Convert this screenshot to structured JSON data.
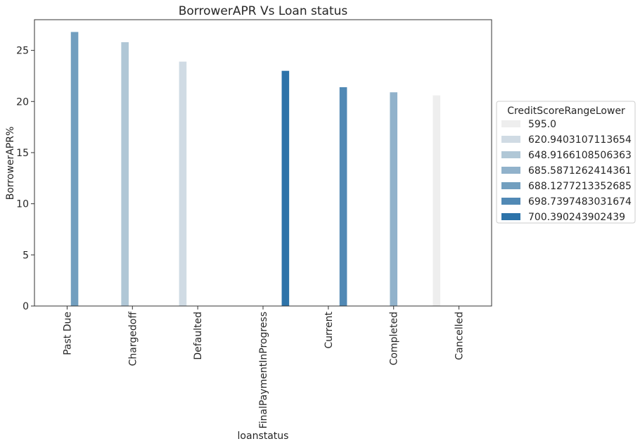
{
  "chart_data": {
    "type": "bar",
    "title": "BorrowerAPR Vs Loan status",
    "xlabel": "loanstatus",
    "ylabel": "BorrowerAPR%",
    "ylim": [
      0,
      28
    ],
    "yticks": [
      "0",
      "5",
      "10",
      "15",
      "20",
      "25"
    ],
    "categories": [
      "Past Due",
      "Chargedoff",
      "Defaulted",
      "FinalPaymentInProgress",
      "Current",
      "Completed",
      "Cancelled"
    ],
    "legend_title": "CreditScoreRangeLower",
    "legend_placement": "right-outside",
    "grid": false,
    "series": [
      {
        "name": "595.0",
        "color": "#eeeeee",
        "values": [
          null,
          null,
          null,
          null,
          null,
          null,
          20.6
        ]
      },
      {
        "name": "620.9403107113654",
        "color": "#d0dbe4",
        "values": [
          null,
          null,
          23.9,
          null,
          null,
          null,
          null
        ]
      },
      {
        "name": "648.9166108506363",
        "color": "#b0c7d6",
        "values": [
          null,
          25.8,
          null,
          null,
          null,
          null,
          null
        ]
      },
      {
        "name": "685.5871262414361",
        "color": "#91b2cb",
        "values": [
          null,
          null,
          null,
          null,
          null,
          20.9,
          null
        ]
      },
      {
        "name": "688.1277213352685",
        "color": "#729fbf",
        "values": [
          26.8,
          null,
          null,
          null,
          null,
          null,
          null
        ]
      },
      {
        "name": "698.7397483031674",
        "color": "#5189b5",
        "values": [
          null,
          null,
          null,
          null,
          21.4,
          null,
          null
        ]
      },
      {
        "name": "700.390243902439",
        "color": "#2d73a9",
        "values": [
          null,
          null,
          null,
          23.0,
          null,
          null,
          null
        ]
      }
    ]
  }
}
